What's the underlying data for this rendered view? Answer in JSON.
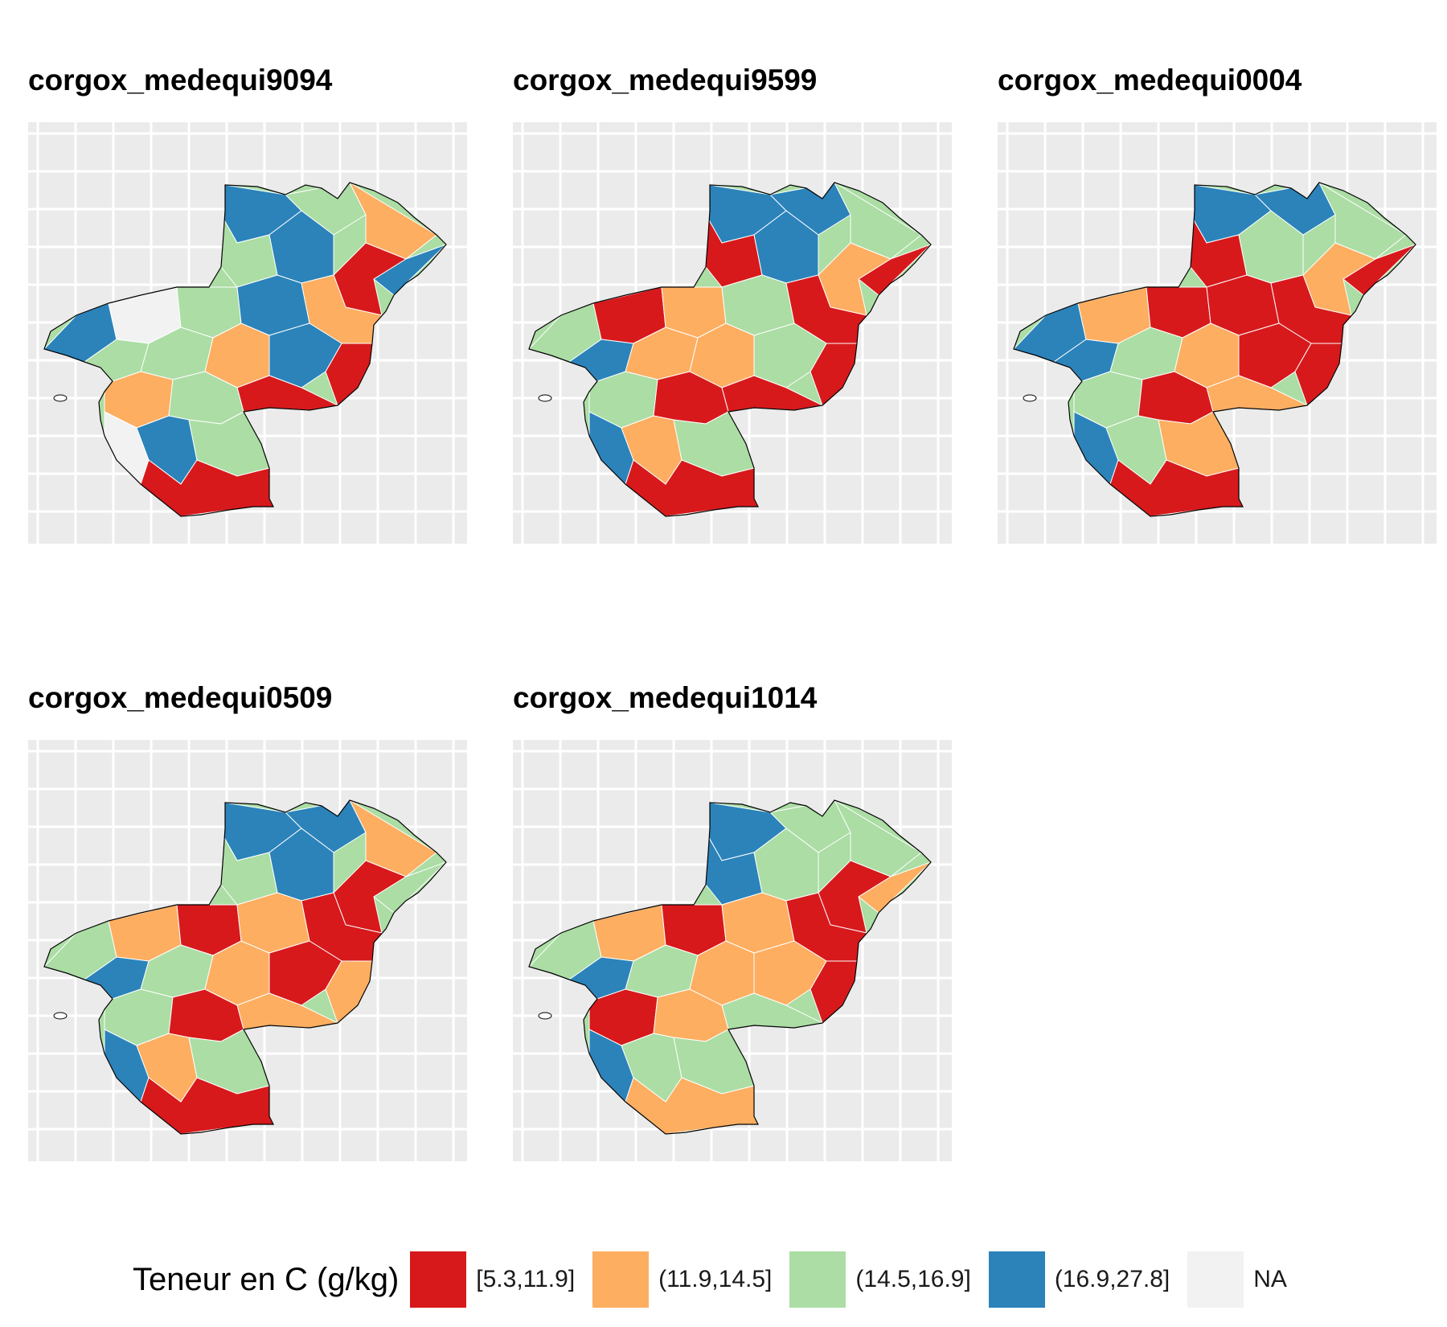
{
  "panels": [
    {
      "title": "corgox_medequi9094",
      "pattern": [
        3,
        2,
        1,
        3,
        0,
        2,
        3,
        3,
        4,
        2,
        3,
        1,
        0,
        2,
        2,
        1,
        3,
        0,
        1,
        2,
        4,
        3,
        2,
        0
      ]
    },
    {
      "title": "corgox_medequi9599",
      "pattern": [
        3,
        3,
        2,
        0,
        1,
        0,
        3,
        2,
        0,
        1,
        2,
        0,
        0,
        3,
        1,
        1,
        2,
        0,
        2,
        0,
        3,
        1,
        2,
        0
      ]
    },
    {
      "title": "corgox_medequi0004",
      "pattern": [
        3,
        3,
        2,
        0,
        1,
        0,
        2,
        3,
        1,
        0,
        0,
        0,
        0,
        3,
        2,
        1,
        0,
        1,
        2,
        0,
        3,
        2,
        1,
        0
      ]
    },
    {
      "title": "corgox_medequi0509",
      "pattern": [
        3,
        3,
        1,
        2,
        0,
        2,
        3,
        2,
        1,
        0,
        1,
        0,
        1,
        3,
        2,
        1,
        0,
        1,
        2,
        0,
        3,
        1,
        2,
        0
      ]
    },
    {
      "title": "corgox_medequi1014",
      "pattern": [
        3,
        2,
        2,
        1,
        0,
        3,
        2,
        2,
        1,
        0,
        1,
        0,
        0,
        3,
        2,
        1,
        1,
        2,
        0,
        1,
        3,
        2,
        2,
        1
      ]
    }
  ],
  "legend": {
    "title": "Teneur en C (g/kg)",
    "items": [
      {
        "label": "[5.3,11.9]",
        "color": "#d7191c"
      },
      {
        "label": "(11.9,14.5]",
        "color": "#fdae61"
      },
      {
        "label": "(14.5,16.9]",
        "color": "#abdda4"
      },
      {
        "label": "(16.9,27.8]",
        "color": "#2b83ba"
      },
      {
        "label": "NA",
        "color": "#f2f2f2"
      }
    ]
  }
}
